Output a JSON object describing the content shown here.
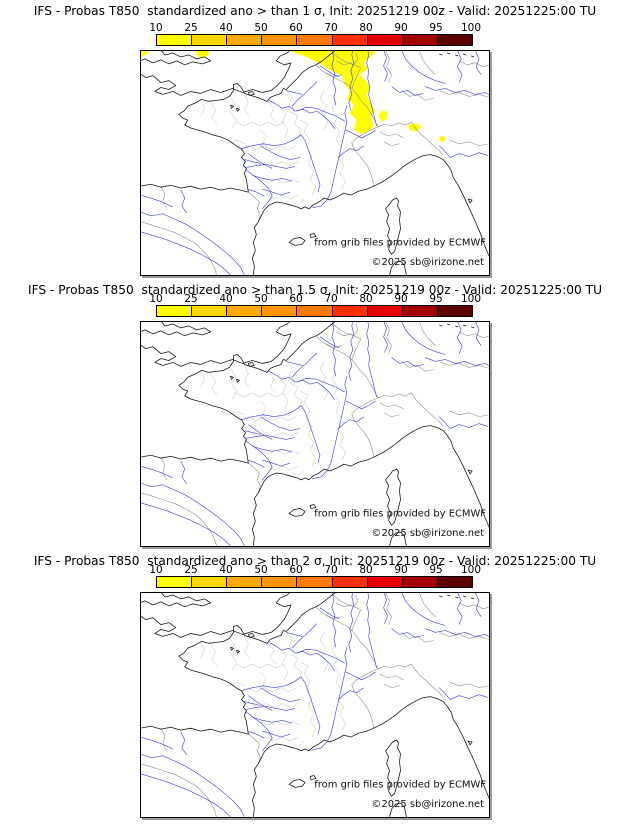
{
  "page": {
    "background": "#ffffff"
  },
  "colors": {
    "probability_shading_10_25": "#ffff00",
    "rivers": "#4545e8",
    "coastlines": "#1a1a1a",
    "admin_boundaries": "#bcbcbc",
    "country_borders": "#8f8f8f",
    "frame_shadow": "#999999"
  },
  "colorbar": {
    "ticks": [
      "10",
      "25",
      "40",
      "50",
      "60",
      "70",
      "80",
      "90",
      "95",
      "100"
    ],
    "colors": [
      "#ffff00",
      "#ffd700",
      "#ffa800",
      "#ff9400",
      "#ff7a00",
      "#ff3000",
      "#e60000",
      "#a40000",
      "#5c0000"
    ]
  },
  "attribution": {
    "line1": "from grib files provided by ECMWF",
    "line2": "©2025 sb@irizone.net"
  },
  "panels": [
    {
      "title": "IFS - Probas T850  standardized ano > than 1 σ, Init: 20251219 00z - Valid: 20251225:00 TU"
    },
    {
      "title": "IFS - Probas T850  standardized ano > than 1.5 σ, Init: 20251219 00z - Valid: 20251225:00 TU"
    },
    {
      "title": "IFS - Probas T850  standardized ano > than 2 σ, Init: 20251219 00z - Valid: 20251225:00 TU"
    }
  ]
}
